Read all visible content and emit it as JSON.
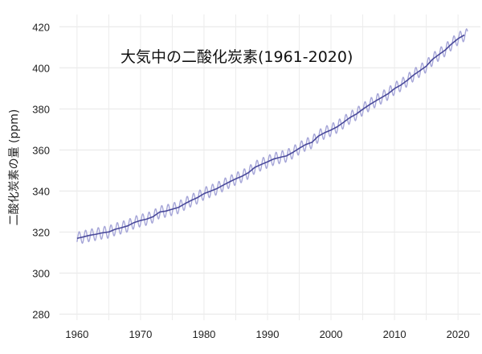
{
  "chart_data": {
    "type": "line",
    "title": "大気中の二酸化炭素(1961-2020)",
    "xlabel": "",
    "ylabel": "二酸化炭素の量 (ppm)",
    "xlim": [
      1958.5,
      2021.5
    ],
    "ylim": [
      277,
      426
    ],
    "x_ticks": [
      1960,
      1970,
      1980,
      1990,
      2000,
      2010,
      2020
    ],
    "y_ticks": [
      280,
      300,
      320,
      340,
      360,
      380,
      400,
      420
    ],
    "grid": true,
    "legend": "none",
    "seasonal_amplitude_ppm": 3.0,
    "series": [
      {
        "role": "trend",
        "color": "#4a4a9a",
        "x": [
          1960,
          1961,
          1962,
          1963,
          1964,
          1965,
          1966,
          1967,
          1968,
          1969,
          1970,
          1971,
          1972,
          1973,
          1974,
          1975,
          1976,
          1977,
          1978,
          1979,
          1980,
          1981,
          1982,
          1983,
          1984,
          1985,
          1986,
          1987,
          1988,
          1989,
          1990,
          1991,
          1992,
          1993,
          1994,
          1995,
          1996,
          1997,
          1998,
          1999,
          2000,
          2001,
          2002,
          2003,
          2004,
          2005,
          2006,
          2007,
          2008,
          2009,
          2010,
          2011,
          2012,
          2013,
          2014,
          2015,
          2016,
          2017,
          2018,
          2019,
          2020,
          2021
        ],
        "y": [
          316.9,
          317.6,
          318.4,
          318.9,
          319.6,
          320.0,
          321.3,
          322.1,
          323.0,
          324.6,
          325.6,
          326.3,
          327.5,
          329.7,
          330.2,
          331.1,
          332.0,
          333.8,
          335.4,
          336.8,
          338.7,
          339.9,
          341.1,
          342.8,
          344.4,
          345.9,
          347.2,
          348.9,
          351.5,
          352.9,
          354.2,
          355.6,
          356.4,
          357.1,
          358.8,
          360.8,
          362.6,
          363.7,
          366.7,
          368.4,
          369.7,
          371.3,
          373.5,
          375.8,
          377.5,
          379.8,
          381.9,
          383.8,
          385.6,
          387.4,
          389.9,
          391.6,
          393.9,
          396.5,
          398.6,
          400.8,
          404.2,
          406.5,
          408.7,
          411.7,
          414.2,
          416.0
        ]
      },
      {
        "role": "monthly",
        "color": "#a6a6d8",
        "x": [],
        "y": []
      }
    ]
  }
}
